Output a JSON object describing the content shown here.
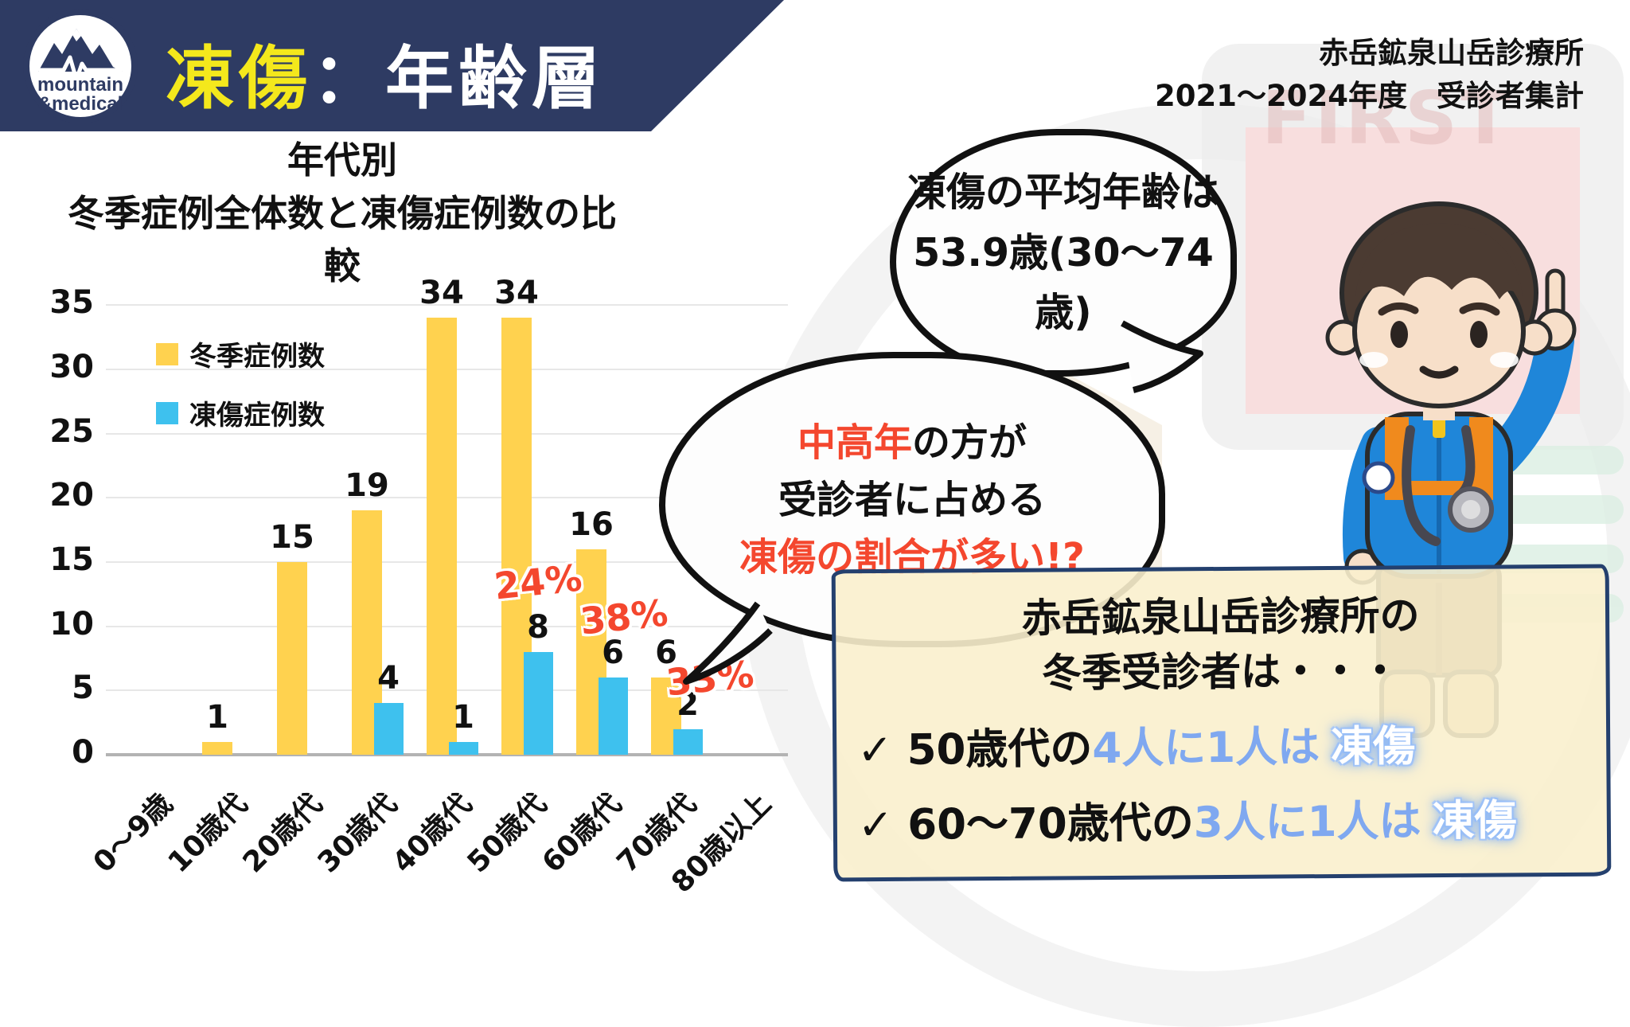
{
  "header": {
    "logo_line1": "mountain",
    "logo_line2": "&medical",
    "title_highlight": "凍傷",
    "title_rest": "：年齢層",
    "source_line1": "赤岳鉱泉山岳診療所",
    "source_line2": "2021～2024年度　受診者集計",
    "watermark_text": "FIRST"
  },
  "chart_data": {
    "type": "bar",
    "title_line1": "年代別",
    "title_line2": "冬季症例全体数と凍傷症例数の比較",
    "categories": [
      "0～9歳",
      "10歳代",
      "20歳代",
      "30歳代",
      "40歳代",
      "50歳代",
      "60歳代",
      "70歳代",
      "80歳以上"
    ],
    "series": [
      {
        "name": "冬季症例数",
        "color": "#ffd24f",
        "values": [
          0,
          1,
          15,
          19,
          34,
          34,
          16,
          6,
          0
        ]
      },
      {
        "name": "凍傷症例数",
        "color": "#3ec1ee",
        "values": [
          0,
          0,
          0,
          4,
          1,
          8,
          6,
          2,
          0
        ]
      }
    ],
    "percent_labels": [
      null,
      null,
      null,
      null,
      null,
      "24%",
      "38%",
      "33%",
      null
    ],
    "ylim": [
      0,
      35
    ],
    "yticks": [
      0,
      5,
      10,
      15,
      20,
      25,
      30,
      35
    ],
    "grid": true,
    "legend_position": "top-left-inside"
  },
  "bubbles": {
    "avg_line1": "凍傷の平均年齢は",
    "avg_line2": "53.9歳(30～74歳)",
    "opinion_line1_red": "中高年",
    "opinion_line1_black": "の方が",
    "opinion_line2": "受診者に占める",
    "opinion_line3_red": "凍傷の割合が多い!?"
  },
  "note": {
    "title_line1": "赤岳鉱泉山岳診療所の",
    "title_line2": "冬季受診者は・・・",
    "items": [
      {
        "check": "✓",
        "black": "50歳代の",
        "blue": "4人に1人は",
        "highlight": "凍傷"
      },
      {
        "check": "✓",
        "black": "60～70歳代の",
        "blue": "3人に1人は",
        "highlight": "凍傷"
      }
    ]
  },
  "colors": {
    "banner_navy": "#2e3b63",
    "title_yellow": "#f4e81c",
    "bar_yellow": "#ffd24f",
    "bar_blue": "#3ec1ee",
    "accent_red": "#f4472e",
    "note_lightblue": "#7fa8f0",
    "note_bg": "#faefcd",
    "note_border": "#24406e"
  }
}
